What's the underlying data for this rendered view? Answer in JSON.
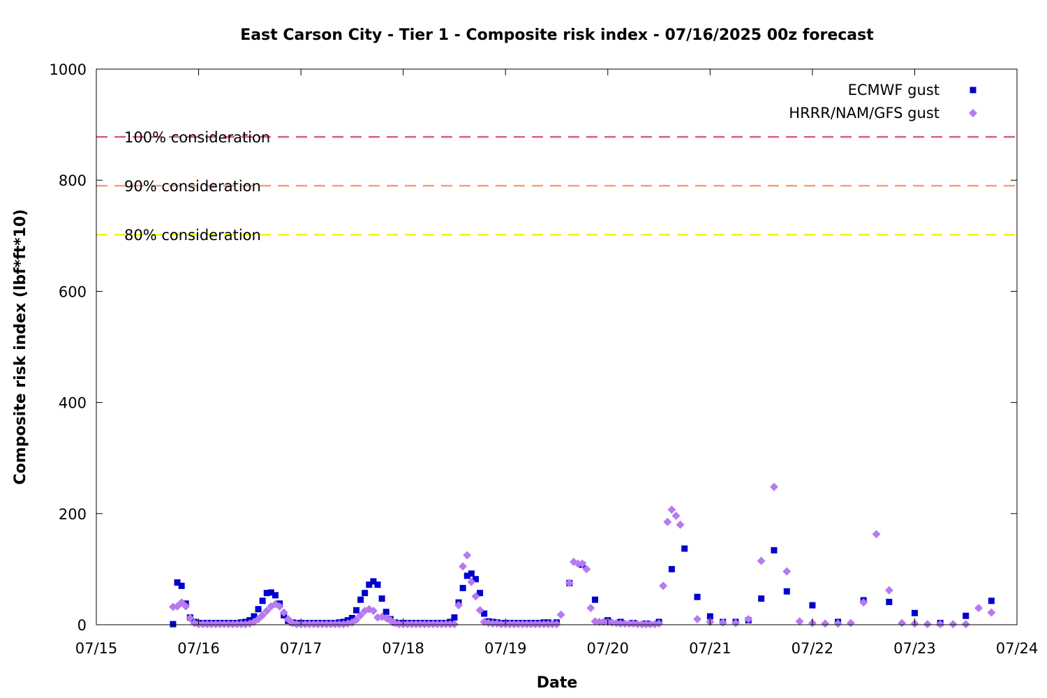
{
  "chart_data": {
    "type": "scatter",
    "title": "East Carson City - Tier 1 - Composite risk index - 07/16/2025 00z forecast",
    "xlabel": "Date",
    "ylabel": "Composite risk index (lbf*ft*10)",
    "x_axis": {
      "type": "date",
      "min": "2025-07-15",
      "max": "2025-07-24",
      "tick_labels": [
        "07/15",
        "07/16",
        "07/17",
        "07/18",
        "07/19",
        "07/20",
        "07/21",
        "07/22",
        "07/23",
        "07/24"
      ]
    },
    "y_axis": {
      "min": 0,
      "max": 1000,
      "tick_labels": [
        "0",
        "200",
        "400",
        "600",
        "800",
        "1000"
      ]
    },
    "grid": false,
    "legend_position": "top-right",
    "reference_lines": [
      {
        "label": "100% consideration",
        "y": 878,
        "color": "#d95f73"
      },
      {
        "label": "90% consideration",
        "y": 790,
        "color": "#f2a07b"
      },
      {
        "label": "80% consideration",
        "y": 702,
        "color": "#f5f500"
      }
    ],
    "series": [
      {
        "name": "ECMWF gust",
        "marker": "square",
        "color": "#0000cc",
        "points": [
          [
            "2025-07-15 18:00",
            1
          ],
          [
            "2025-07-15 19:00",
            76
          ],
          [
            "2025-07-15 20:00",
            70
          ],
          [
            "2025-07-15 21:00",
            38
          ],
          [
            "2025-07-15 22:00",
            13
          ],
          [
            "2025-07-15 23:00",
            5
          ],
          [
            "2025-07-16 00:00",
            3
          ],
          [
            "2025-07-16 01:00",
            3
          ],
          [
            "2025-07-16 02:00",
            3
          ],
          [
            "2025-07-16 03:00",
            3
          ],
          [
            "2025-07-16 04:00",
            3
          ],
          [
            "2025-07-16 05:00",
            3
          ],
          [
            "2025-07-16 06:00",
            3
          ],
          [
            "2025-07-16 07:00",
            3
          ],
          [
            "2025-07-16 08:00",
            3
          ],
          [
            "2025-07-16 09:00",
            3
          ],
          [
            "2025-07-16 10:00",
            4
          ],
          [
            "2025-07-16 11:00",
            5
          ],
          [
            "2025-07-16 12:00",
            8
          ],
          [
            "2025-07-16 13:00",
            15
          ],
          [
            "2025-07-16 14:00",
            28
          ],
          [
            "2025-07-16 15:00",
            43
          ],
          [
            "2025-07-16 16:00",
            57
          ],
          [
            "2025-07-16 17:00",
            58
          ],
          [
            "2025-07-16 18:00",
            53
          ],
          [
            "2025-07-16 19:00",
            38
          ],
          [
            "2025-07-16 20:00",
            17
          ],
          [
            "2025-07-16 21:00",
            7
          ],
          [
            "2025-07-16 22:00",
            4
          ],
          [
            "2025-07-16 23:00",
            3
          ],
          [
            "2025-07-17 00:00",
            3
          ],
          [
            "2025-07-17 01:00",
            3
          ],
          [
            "2025-07-17 02:00",
            3
          ],
          [
            "2025-07-17 03:00",
            3
          ],
          [
            "2025-07-17 04:00",
            3
          ],
          [
            "2025-07-17 05:00",
            3
          ],
          [
            "2025-07-17 06:00",
            3
          ],
          [
            "2025-07-17 07:00",
            3
          ],
          [
            "2025-07-17 08:00",
            3
          ],
          [
            "2025-07-17 09:00",
            4
          ],
          [
            "2025-07-17 10:00",
            5
          ],
          [
            "2025-07-17 11:00",
            8
          ],
          [
            "2025-07-17 12:00",
            12
          ],
          [
            "2025-07-17 13:00",
            26
          ],
          [
            "2025-07-17 14:00",
            45
          ],
          [
            "2025-07-17 15:00",
            57
          ],
          [
            "2025-07-17 16:00",
            72
          ],
          [
            "2025-07-17 17:00",
            78
          ],
          [
            "2025-07-17 18:00",
            72
          ],
          [
            "2025-07-17 19:00",
            47
          ],
          [
            "2025-07-17 20:00",
            23
          ],
          [
            "2025-07-17 21:00",
            10
          ],
          [
            "2025-07-17 22:00",
            4
          ],
          [
            "2025-07-17 23:00",
            3
          ],
          [
            "2025-07-18 00:00",
            3
          ],
          [
            "2025-07-18 01:00",
            3
          ],
          [
            "2025-07-18 02:00",
            3
          ],
          [
            "2025-07-18 03:00",
            3
          ],
          [
            "2025-07-18 04:00",
            3
          ],
          [
            "2025-07-18 05:00",
            3
          ],
          [
            "2025-07-18 06:00",
            3
          ],
          [
            "2025-07-18 07:00",
            3
          ],
          [
            "2025-07-18 08:00",
            3
          ],
          [
            "2025-07-18 09:00",
            3
          ],
          [
            "2025-07-18 10:00",
            3
          ],
          [
            "2025-07-18 11:00",
            5
          ],
          [
            "2025-07-18 12:00",
            13
          ],
          [
            "2025-07-18 13:00",
            40
          ],
          [
            "2025-07-18 14:00",
            66
          ],
          [
            "2025-07-18 15:00",
            88
          ],
          [
            "2025-07-18 16:00",
            92
          ],
          [
            "2025-07-18 17:00",
            82
          ],
          [
            "2025-07-18 18:00",
            57
          ],
          [
            "2025-07-18 19:00",
            20
          ],
          [
            "2025-07-18 20:00",
            6
          ],
          [
            "2025-07-18 21:00",
            5
          ],
          [
            "2025-07-18 22:00",
            4
          ],
          [
            "2025-07-18 23:00",
            3
          ],
          [
            "2025-07-19 00:00",
            3
          ],
          [
            "2025-07-19 01:00",
            3
          ],
          [
            "2025-07-19 02:00",
            3
          ],
          [
            "2025-07-19 03:00",
            3
          ],
          [
            "2025-07-19 04:00",
            3
          ],
          [
            "2025-07-19 05:00",
            3
          ],
          [
            "2025-07-19 06:00",
            3
          ],
          [
            "2025-07-19 07:00",
            3
          ],
          [
            "2025-07-19 08:00",
            3
          ],
          [
            "2025-07-19 09:00",
            4
          ],
          [
            "2025-07-19 10:00",
            4
          ],
          [
            "2025-07-19 12:00",
            4
          ],
          [
            "2025-07-19 15:00",
            75
          ],
          [
            "2025-07-19 18:00",
            108
          ],
          [
            "2025-07-19 21:00",
            45
          ],
          [
            "2025-07-20 00:00",
            8
          ],
          [
            "2025-07-20 03:00",
            5
          ],
          [
            "2025-07-20 06:00",
            3
          ],
          [
            "2025-07-20 09:00",
            2
          ],
          [
            "2025-07-20 12:00",
            5
          ],
          [
            "2025-07-20 15:00",
            100
          ],
          [
            "2025-07-20 18:00",
            137
          ],
          [
            "2025-07-20 21:00",
            50
          ],
          [
            "2025-07-21 00:00",
            15
          ],
          [
            "2025-07-21 03:00",
            5
          ],
          [
            "2025-07-21 06:00",
            5
          ],
          [
            "2025-07-21 09:00",
            8
          ],
          [
            "2025-07-21 12:00",
            47
          ],
          [
            "2025-07-21 15:00",
            134
          ],
          [
            "2025-07-21 18:00",
            60
          ],
          [
            "2025-07-22 00:00",
            35
          ],
          [
            "2025-07-22 06:00",
            5
          ],
          [
            "2025-07-22 12:00",
            44
          ],
          [
            "2025-07-22 18:00",
            41
          ],
          [
            "2025-07-23 00:00",
            21
          ],
          [
            "2025-07-23 06:00",
            3
          ],
          [
            "2025-07-23 12:00",
            16
          ],
          [
            "2025-07-23 18:00",
            43
          ]
        ]
      },
      {
        "name": "HRRR/NAM/GFS gust",
        "marker": "diamond",
        "color": "#b77af0",
        "points": [
          [
            "2025-07-15 18:00",
            32
          ],
          [
            "2025-07-15 19:00",
            33
          ],
          [
            "2025-07-15 20:00",
            40
          ],
          [
            "2025-07-15 21:00",
            33
          ],
          [
            "2025-07-15 22:00",
            12
          ],
          [
            "2025-07-15 23:00",
            3
          ],
          [
            "2025-07-16 00:00",
            1
          ],
          [
            "2025-07-16 01:00",
            1
          ],
          [
            "2025-07-16 02:00",
            1
          ],
          [
            "2025-07-16 03:00",
            1
          ],
          [
            "2025-07-16 04:00",
            1
          ],
          [
            "2025-07-16 05:00",
            1
          ],
          [
            "2025-07-16 06:00",
            1
          ],
          [
            "2025-07-16 07:00",
            1
          ],
          [
            "2025-07-16 08:00",
            1
          ],
          [
            "2025-07-16 09:00",
            1
          ],
          [
            "2025-07-16 10:00",
            1
          ],
          [
            "2025-07-16 11:00",
            1
          ],
          [
            "2025-07-16 12:00",
            2
          ],
          [
            "2025-07-16 13:00",
            5
          ],
          [
            "2025-07-16 14:00",
            10
          ],
          [
            "2025-07-16 15:00",
            17
          ],
          [
            "2025-07-16 16:00",
            25
          ],
          [
            "2025-07-16 17:00",
            33
          ],
          [
            "2025-07-16 18:00",
            37
          ],
          [
            "2025-07-16 19:00",
            33
          ],
          [
            "2025-07-16 20:00",
            22
          ],
          [
            "2025-07-16 21:00",
            10
          ],
          [
            "2025-07-16 22:00",
            3
          ],
          [
            "2025-07-16 23:00",
            1
          ],
          [
            "2025-07-17 00:00",
            1
          ],
          [
            "2025-07-17 01:00",
            1
          ],
          [
            "2025-07-17 02:00",
            1
          ],
          [
            "2025-07-17 03:00",
            1
          ],
          [
            "2025-07-17 04:00",
            1
          ],
          [
            "2025-07-17 05:00",
            1
          ],
          [
            "2025-07-17 06:00",
            1
          ],
          [
            "2025-07-17 07:00",
            1
          ],
          [
            "2025-07-17 08:00",
            1
          ],
          [
            "2025-07-17 09:00",
            1
          ],
          [
            "2025-07-17 10:00",
            1
          ],
          [
            "2025-07-17 11:00",
            2
          ],
          [
            "2025-07-17 12:00",
            4
          ],
          [
            "2025-07-17 13:00",
            9
          ],
          [
            "2025-07-17 14:00",
            17
          ],
          [
            "2025-07-17 15:00",
            25
          ],
          [
            "2025-07-17 16:00",
            28
          ],
          [
            "2025-07-17 17:00",
            25
          ],
          [
            "2025-07-17 18:00",
            13
          ],
          [
            "2025-07-17 19:00",
            14
          ],
          [
            "2025-07-17 20:00",
            12
          ],
          [
            "2025-07-17 21:00",
            8
          ],
          [
            "2025-07-17 22:00",
            3
          ],
          [
            "2025-07-17 23:00",
            1
          ],
          [
            "2025-07-18 00:00",
            1
          ],
          [
            "2025-07-18 01:00",
            1
          ],
          [
            "2025-07-18 02:00",
            1
          ],
          [
            "2025-07-18 03:00",
            1
          ],
          [
            "2025-07-18 04:00",
            1
          ],
          [
            "2025-07-18 05:00",
            1
          ],
          [
            "2025-07-18 06:00",
            1
          ],
          [
            "2025-07-18 07:00",
            1
          ],
          [
            "2025-07-18 08:00",
            1
          ],
          [
            "2025-07-18 09:00",
            1
          ],
          [
            "2025-07-18 10:00",
            1
          ],
          [
            "2025-07-18 11:00",
            1
          ],
          [
            "2025-07-18 12:00",
            1
          ],
          [
            "2025-07-18 13:00",
            35
          ],
          [
            "2025-07-18 14:00",
            105
          ],
          [
            "2025-07-18 15:00",
            125
          ],
          [
            "2025-07-18 16:00",
            77
          ],
          [
            "2025-07-18 17:00",
            51
          ],
          [
            "2025-07-18 18:00",
            26
          ],
          [
            "2025-07-18 19:00",
            5
          ],
          [
            "2025-07-18 20:00",
            3
          ],
          [
            "2025-07-18 21:00",
            2
          ],
          [
            "2025-07-18 22:00",
            2
          ],
          [
            "2025-07-18 23:00",
            1
          ],
          [
            "2025-07-19 00:00",
            1
          ],
          [
            "2025-07-19 01:00",
            1
          ],
          [
            "2025-07-19 02:00",
            1
          ],
          [
            "2025-07-19 03:00",
            1
          ],
          [
            "2025-07-19 04:00",
            1
          ],
          [
            "2025-07-19 05:00",
            1
          ],
          [
            "2025-07-19 06:00",
            1
          ],
          [
            "2025-07-19 07:00",
            1
          ],
          [
            "2025-07-19 08:00",
            1
          ],
          [
            "2025-07-19 09:00",
            1
          ],
          [
            "2025-07-19 10:00",
            1
          ],
          [
            "2025-07-19 11:00",
            1
          ],
          [
            "2025-07-19 12:00",
            1
          ],
          [
            "2025-07-19 13:00",
            18
          ],
          [
            "2025-07-19 15:00",
            75
          ],
          [
            "2025-07-19 16:00",
            113
          ],
          [
            "2025-07-19 17:00",
            110
          ],
          [
            "2025-07-19 18:00",
            110
          ],
          [
            "2025-07-19 19:00",
            100
          ],
          [
            "2025-07-19 20:00",
            30
          ],
          [
            "2025-07-19 21:00",
            6
          ],
          [
            "2025-07-19 22:00",
            5
          ],
          [
            "2025-07-19 23:00",
            5
          ],
          [
            "2025-07-20 00:00",
            5
          ],
          [
            "2025-07-20 01:00",
            4
          ],
          [
            "2025-07-20 02:00",
            3
          ],
          [
            "2025-07-20 03:00",
            2
          ],
          [
            "2025-07-20 04:00",
            2
          ],
          [
            "2025-07-20 05:00",
            2
          ],
          [
            "2025-07-20 06:00",
            2
          ],
          [
            "2025-07-20 07:00",
            1
          ],
          [
            "2025-07-20 08:00",
            1
          ],
          [
            "2025-07-20 09:00",
            1
          ],
          [
            "2025-07-20 10:00",
            1
          ],
          [
            "2025-07-20 11:00",
            1
          ],
          [
            "2025-07-20 12:00",
            2
          ],
          [
            "2025-07-20 13:00",
            70
          ],
          [
            "2025-07-20 14:00",
            185
          ],
          [
            "2025-07-20 15:00",
            207
          ],
          [
            "2025-07-20 16:00",
            196
          ],
          [
            "2025-07-20 17:00",
            180
          ],
          [
            "2025-07-20 21:00",
            10
          ],
          [
            "2025-07-21 00:00",
            5
          ],
          [
            "2025-07-21 03:00",
            4
          ],
          [
            "2025-07-21 06:00",
            3
          ],
          [
            "2025-07-21 09:00",
            10
          ],
          [
            "2025-07-21 12:00",
            115
          ],
          [
            "2025-07-21 15:00",
            248
          ],
          [
            "2025-07-21 18:00",
            96
          ],
          [
            "2025-07-21 21:00",
            6
          ],
          [
            "2025-07-22 00:00",
            3
          ],
          [
            "2025-07-22 03:00",
            2
          ],
          [
            "2025-07-22 06:00",
            2
          ],
          [
            "2025-07-22 09:00",
            3
          ],
          [
            "2025-07-22 12:00",
            40
          ],
          [
            "2025-07-22 15:00",
            163
          ],
          [
            "2025-07-22 18:00",
            62
          ],
          [
            "2025-07-22 21:00",
            3
          ],
          [
            "2025-07-23 00:00",
            2
          ],
          [
            "2025-07-23 03:00",
            1
          ],
          [
            "2025-07-23 06:00",
            1
          ],
          [
            "2025-07-23 09:00",
            1
          ],
          [
            "2025-07-23 12:00",
            1
          ],
          [
            "2025-07-23 15:00",
            30
          ],
          [
            "2025-07-23 18:00",
            22
          ]
        ]
      }
    ]
  }
}
